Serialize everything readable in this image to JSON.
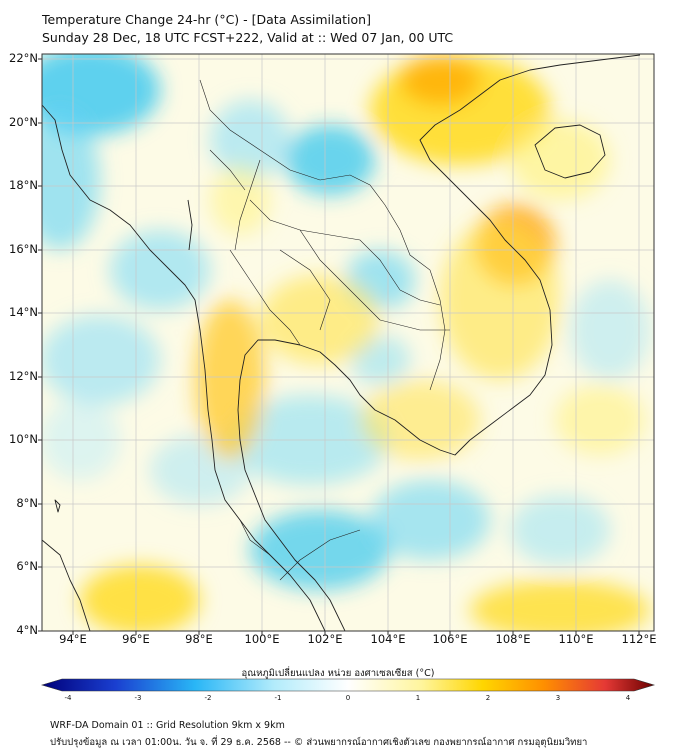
{
  "title": {
    "line1": "Temperature Change 24-hr (°C) - [Data Assimilation]",
    "line2": "Sunday 28 Dec, 18 UTC FCST+222, Valid at :: Wed 07 Jan, 00 UTC"
  },
  "axes": {
    "lat_labels": [
      "22°N",
      "20°N",
      "18°N",
      "16°N",
      "14°N",
      "12°N",
      "10°N",
      "8°N",
      "6°N",
      "4°N"
    ],
    "lon_labels": [
      "94°E",
      "96°E",
      "98°E",
      "100°E",
      "102°E",
      "104°E",
      "106°E",
      "108°E",
      "110°E",
      "112°E"
    ],
    "lat_range": [
      4,
      22.2
    ],
    "lon_range": [
      93,
      112.6
    ]
  },
  "colorbar": {
    "label": "อุณหภูมิเปลี่ยนแปลง หน่วย องศาเซลเซียส (°C)",
    "ticks": [
      "-4",
      "-3",
      "-2",
      "-1",
      "0",
      "1",
      "2",
      "3",
      "4"
    ],
    "range": [
      -4,
      4
    ]
  },
  "colors": {
    "strong_cool": "#00008b",
    "cool": "#29b6f6",
    "neutral": "#ffffff",
    "warm": "#ffe000",
    "hot": "#e65100",
    "extreme": "#8b0000"
  },
  "footer": {
    "line1": "WRF-DA Domain 01 :: Grid Resolution 9km x 9km",
    "line2": "ปรับปรุงข้อมูล ณ เวลา 01:00น. วัน จ. ที่ 29 ธ.ค. 2568 -- © ส่วนพยากรณ์อากาศเชิงตัวเลข กองพยากรณ์อากาศ กรมอุตุนิยมวิทยา"
  }
}
